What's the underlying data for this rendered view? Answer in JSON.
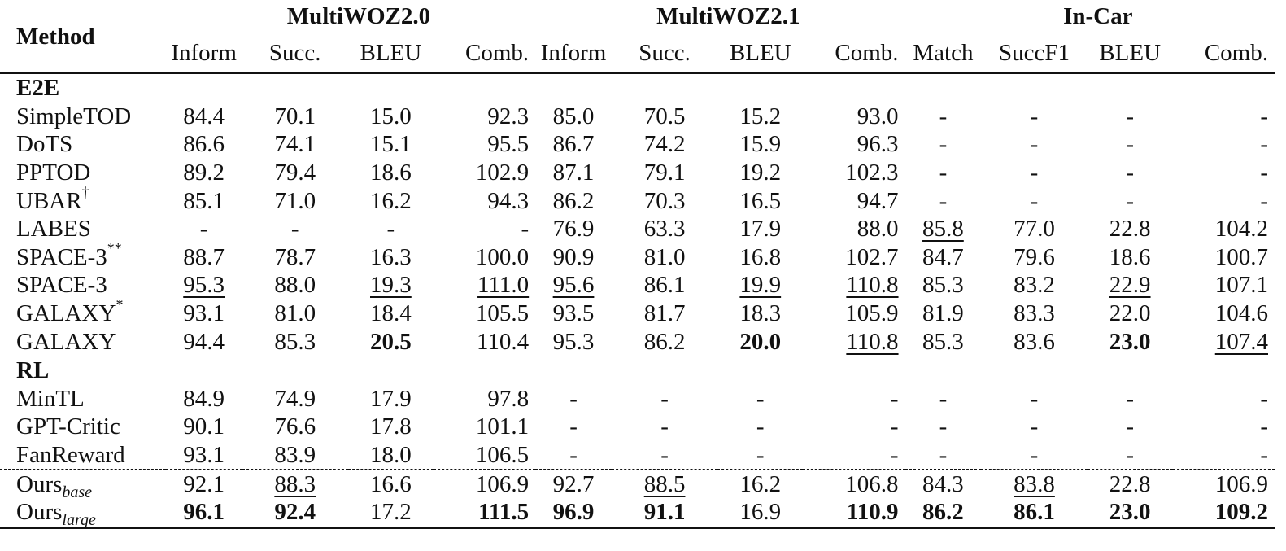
{
  "table": {
    "method_header": "Method",
    "groups": [
      {
        "label": "MultiWOZ2.0",
        "columns": [
          "Inform",
          "Succ.",
          "BLEU",
          "Comb."
        ]
      },
      {
        "label": "MultiWOZ2.1",
        "columns": [
          "Inform",
          "Succ.",
          "BLEU",
          "Comb."
        ]
      },
      {
        "label": "In-Car",
        "columns": [
          "Match",
          "SuccF1",
          "BLEU",
          "Comb."
        ]
      }
    ],
    "sections": [
      {
        "label": "E2E",
        "rows": [
          {
            "name": "SimpleTOD",
            "sup": "",
            "sub": "",
            "values": [
              "84.4",
              "70.1",
              "15.0",
              "92.3",
              "85.0",
              "70.5",
              "15.2",
              "93.0",
              "-",
              "-",
              "-",
              "-"
            ],
            "bold": [],
            "underline": []
          },
          {
            "name": "DoTS",
            "sup": "",
            "sub": "",
            "values": [
              "86.6",
              "74.1",
              "15.1",
              "95.5",
              "86.7",
              "74.2",
              "15.9",
              "96.3",
              "-",
              "-",
              "-",
              "-"
            ],
            "bold": [],
            "underline": []
          },
          {
            "name": "PPTOD",
            "sup": "",
            "sub": "",
            "values": [
              "89.2",
              "79.4",
              "18.6",
              "102.9",
              "87.1",
              "79.1",
              "19.2",
              "102.3",
              "-",
              "-",
              "-",
              "-"
            ],
            "bold": [],
            "underline": []
          },
          {
            "name": "UBAR",
            "sup": "†",
            "sub": "",
            "values": [
              "85.1",
              "71.0",
              "16.2",
              "94.3",
              "86.2",
              "70.3",
              "16.5",
              "94.7",
              "-",
              "-",
              "-",
              "-"
            ],
            "bold": [],
            "underline": []
          },
          {
            "name": "LABES",
            "sup": "",
            "sub": "",
            "values": [
              "-",
              "-",
              "-",
              "-",
              "76.9",
              "63.3",
              "17.9",
              "88.0",
              "85.8",
              "77.0",
              "22.8",
              "104.2"
            ],
            "bold": [],
            "underline": [
              8
            ]
          },
          {
            "name": "SPACE-3",
            "sup": "**",
            "sub": "",
            "values": [
              "88.7",
              "78.7",
              "16.3",
              "100.0",
              "90.9",
              "81.0",
              "16.8",
              "102.7",
              "84.7",
              "79.6",
              "18.6",
              "100.7"
            ],
            "bold": [],
            "underline": []
          },
          {
            "name": "SPACE-3",
            "sup": "",
            "sub": "",
            "values": [
              "95.3",
              "88.0",
              "19.3",
              "111.0",
              "95.6",
              "86.1",
              "19.9",
              "110.8",
              "85.3",
              "83.2",
              "22.9",
              "107.1"
            ],
            "bold": [],
            "underline": [
              0,
              2,
              3,
              4,
              6,
              7,
              10
            ]
          },
          {
            "name": "GALAXY",
            "sup": "*",
            "sub": "",
            "values": [
              "93.1",
              "81.0",
              "18.4",
              "105.5",
              "93.5",
              "81.7",
              "18.3",
              "105.9",
              "81.9",
              "83.3",
              "22.0",
              "104.6"
            ],
            "bold": [],
            "underline": []
          },
          {
            "name": "GALAXY",
            "sup": "",
            "sub": "",
            "values": [
              "94.4",
              "85.3",
              "20.5",
              "110.4",
              "95.3",
              "86.2",
              "20.0",
              "110.8",
              "85.3",
              "83.6",
              "23.0",
              "107.4"
            ],
            "bold": [
              2,
              6,
              10
            ],
            "underline": [
              7,
              11
            ]
          }
        ]
      },
      {
        "label": "RL",
        "rows": [
          {
            "name": "MinTL",
            "sup": "",
            "sub": "",
            "values": [
              "84.9",
              "74.9",
              "17.9",
              "97.8",
              "-",
              "-",
              "-",
              "-",
              "-",
              "-",
              "-",
              "-"
            ],
            "bold": [],
            "underline": []
          },
          {
            "name": "GPT-Critic",
            "sup": "",
            "sub": "",
            "values": [
              "90.1",
              "76.6",
              "17.8",
              "101.1",
              "-",
              "-",
              "-",
              "-",
              "-",
              "-",
              "-",
              "-"
            ],
            "bold": [],
            "underline": []
          },
          {
            "name": "FanReward",
            "sup": "",
            "sub": "",
            "values": [
              "93.1",
              "83.9",
              "18.0",
              "106.5",
              "-",
              "-",
              "-",
              "-",
              "-",
              "-",
              "-",
              "-"
            ],
            "bold": [],
            "underline": []
          }
        ]
      },
      {
        "label": "",
        "rows": [
          {
            "name": "Ours",
            "sup": "",
            "sub": "base",
            "values": [
              "92.1",
              "88.3",
              "16.6",
              "106.9",
              "92.7",
              "88.5",
              "16.2",
              "106.8",
              "84.3",
              "83.8",
              "22.8",
              "106.9"
            ],
            "bold": [],
            "underline": [
              1,
              5,
              9
            ]
          },
          {
            "name": "Ours",
            "sup": "",
            "sub": "large",
            "values": [
              "96.1",
              "92.4",
              "17.2",
              "111.5",
              "96.9",
              "91.1",
              "16.9",
              "110.9",
              "86.2",
              "86.1",
              "23.0",
              "109.2"
            ],
            "bold": [
              0,
              1,
              3,
              4,
              5,
              7,
              8,
              9,
              10,
              11
            ],
            "underline": []
          }
        ]
      }
    ]
  }
}
